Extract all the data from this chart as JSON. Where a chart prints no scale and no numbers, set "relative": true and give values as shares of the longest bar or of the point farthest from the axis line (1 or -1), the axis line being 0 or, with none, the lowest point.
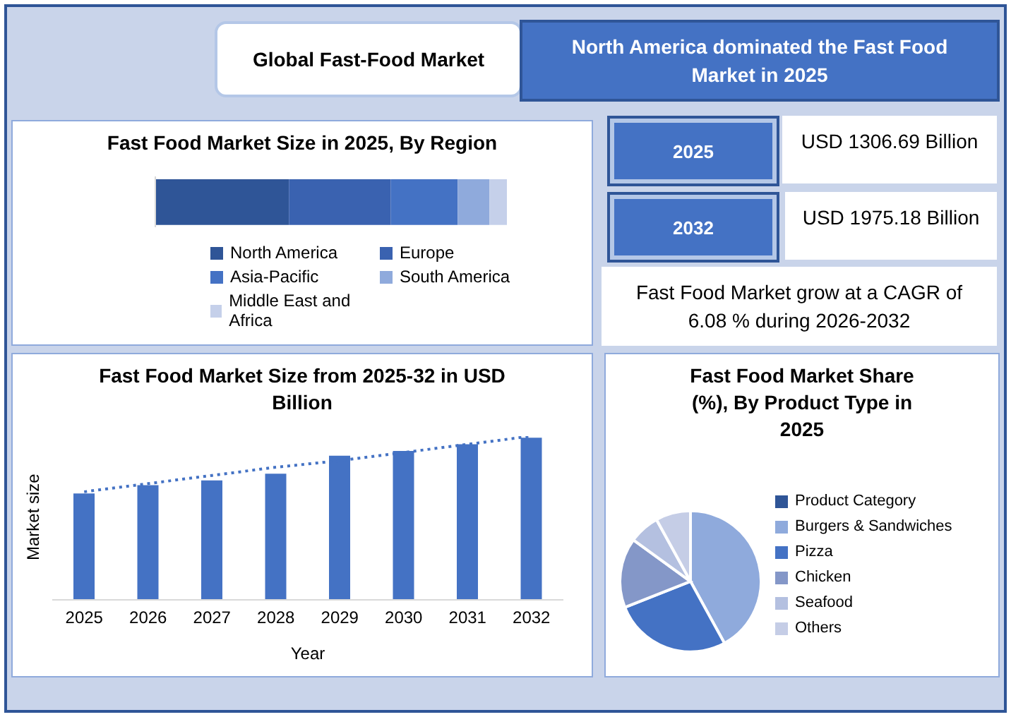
{
  "chart_data": [
    {
      "type": "other",
      "title": "Global Fast-Food Market",
      "annotations": [
        "North America dominated the Fast Food Market in 2025",
        "2025",
        "USD 1306.69 Billion",
        "2032",
        "USD 1975.18 Billion",
        "Fast Food Market grow at a CAGR of 6.08 % during 2026-2032"
      ]
    },
    {
      "type": "bar",
      "title": "Fast Food Market Size in 2025, By Region",
      "orientation": "horizontal",
      "stacked": true,
      "relative": true,
      "categories": [
        null
      ],
      "legend": "bottom",
      "series": [
        {
          "name": "North America",
          "color": "#2f5597",
          "values": [
            0.38
          ]
        },
        {
          "name": "Europe",
          "color": "#3a62b0",
          "values": [
            0.29
          ]
        },
        {
          "name": "Asia-Pacific",
          "color": "#4472c4",
          "values": [
            0.19
          ]
        },
        {
          "name": "South America",
          "color": "#8faadc",
          "values": [
            0.09
          ]
        },
        {
          "name": "Middle East and Africa",
          "color": "#c5d0ea",
          "values": [
            0.05
          ]
        }
      ]
    },
    {
      "type": "bar",
      "title": "Fast Food Market Size from 2025-32 in USD Billion",
      "xlabel": "Year",
      "ylabel": "Market size",
      "relative": true,
      "categories": [
        "2025",
        "2026",
        "2027",
        "2028",
        "2029",
        "2030",
        "2031",
        "2032"
      ],
      "series": [
        {
          "color": "#4472c4",
          "values": [
            0.65,
            0.7,
            0.73,
            0.77,
            0.88,
            0.91,
            0.95,
            0.99
          ]
        },
        {
          "type": "line",
          "line_style": "dotted",
          "color": "#4472c4",
          "values": [
            0.66,
            0.71,
            0.76,
            0.81,
            0.85,
            0.9,
            0.95,
            1.0
          ]
        }
      ]
    },
    {
      "type": "pie",
      "title": "Fast Food Market Share (%), By Product Type in 2025",
      "legend": "right",
      "categories": [
        "Product Category",
        "Burgers & Sandwiches",
        "Pizza",
        "Chicken",
        "Seafood",
        "Others"
      ],
      "values": [
        0,
        42,
        27,
        16,
        7,
        8
      ],
      "colors": [
        "#2f5597",
        "#8faadc",
        "#4472c4",
        "#8497c8",
        "#b4c0e0",
        "#c5cde6"
      ]
    }
  ]
}
